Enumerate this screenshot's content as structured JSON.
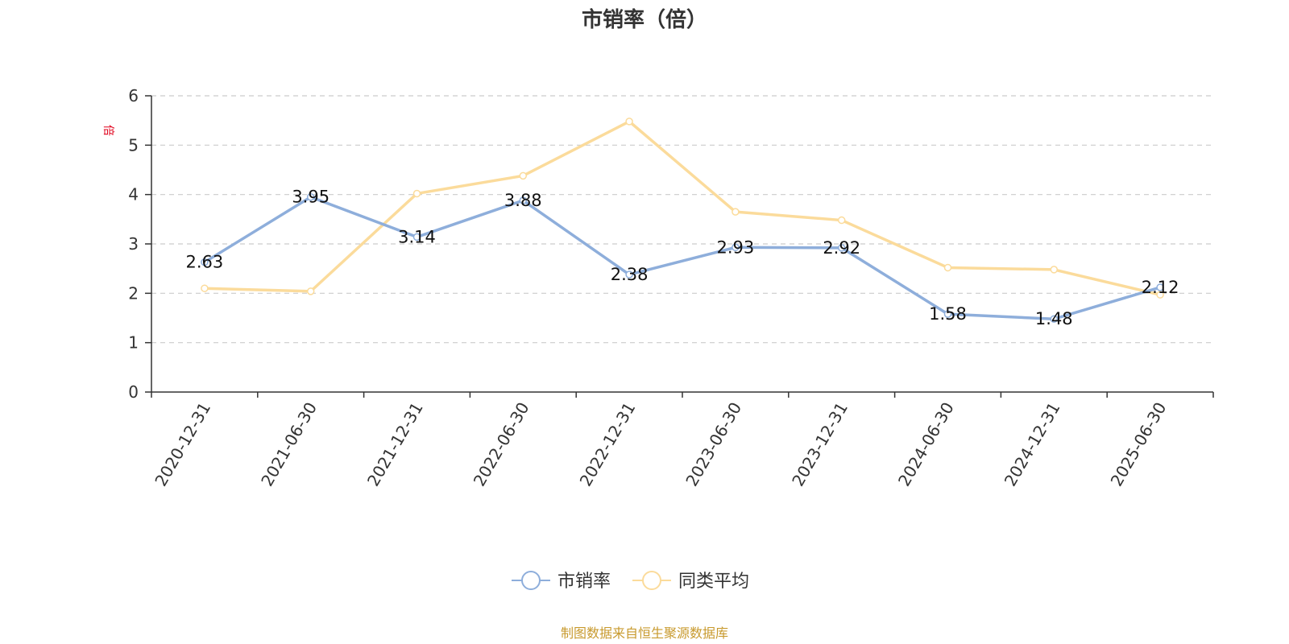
{
  "chart_data": {
    "type": "line",
    "title": "市销率（倍）",
    "y_unit": "倍",
    "categories": [
      "2020-12-31",
      "2021-06-30",
      "2021-12-31",
      "2022-06-30",
      "2022-12-31",
      "2023-06-30",
      "2023-12-31",
      "2024-06-30",
      "2024-12-31",
      "2025-06-30"
    ],
    "ylim": [
      0,
      6
    ],
    "yticks": [
      0,
      1,
      2,
      3,
      4,
      5,
      6
    ],
    "grid": true,
    "legend_position": "bottom",
    "series": [
      {
        "name": "市销率",
        "color": "#8eaedb",
        "values": [
          2.63,
          3.95,
          3.14,
          3.88,
          2.38,
          2.93,
          2.92,
          1.58,
          1.48,
          2.12
        ],
        "labels": [
          "2.63",
          "3.95",
          "3.14",
          "3.88",
          "2.38",
          "2.93",
          "2.92",
          "1.58",
          "1.48",
          "2.12"
        ]
      },
      {
        "name": "同类平均",
        "color": "#fbdb9b",
        "values": [
          2.1,
          2.04,
          4.02,
          4.38,
          5.48,
          3.65,
          3.48,
          2.52,
          2.48,
          1.97
        ]
      }
    ],
    "source": "制图数据来自恒生聚源数据库"
  }
}
